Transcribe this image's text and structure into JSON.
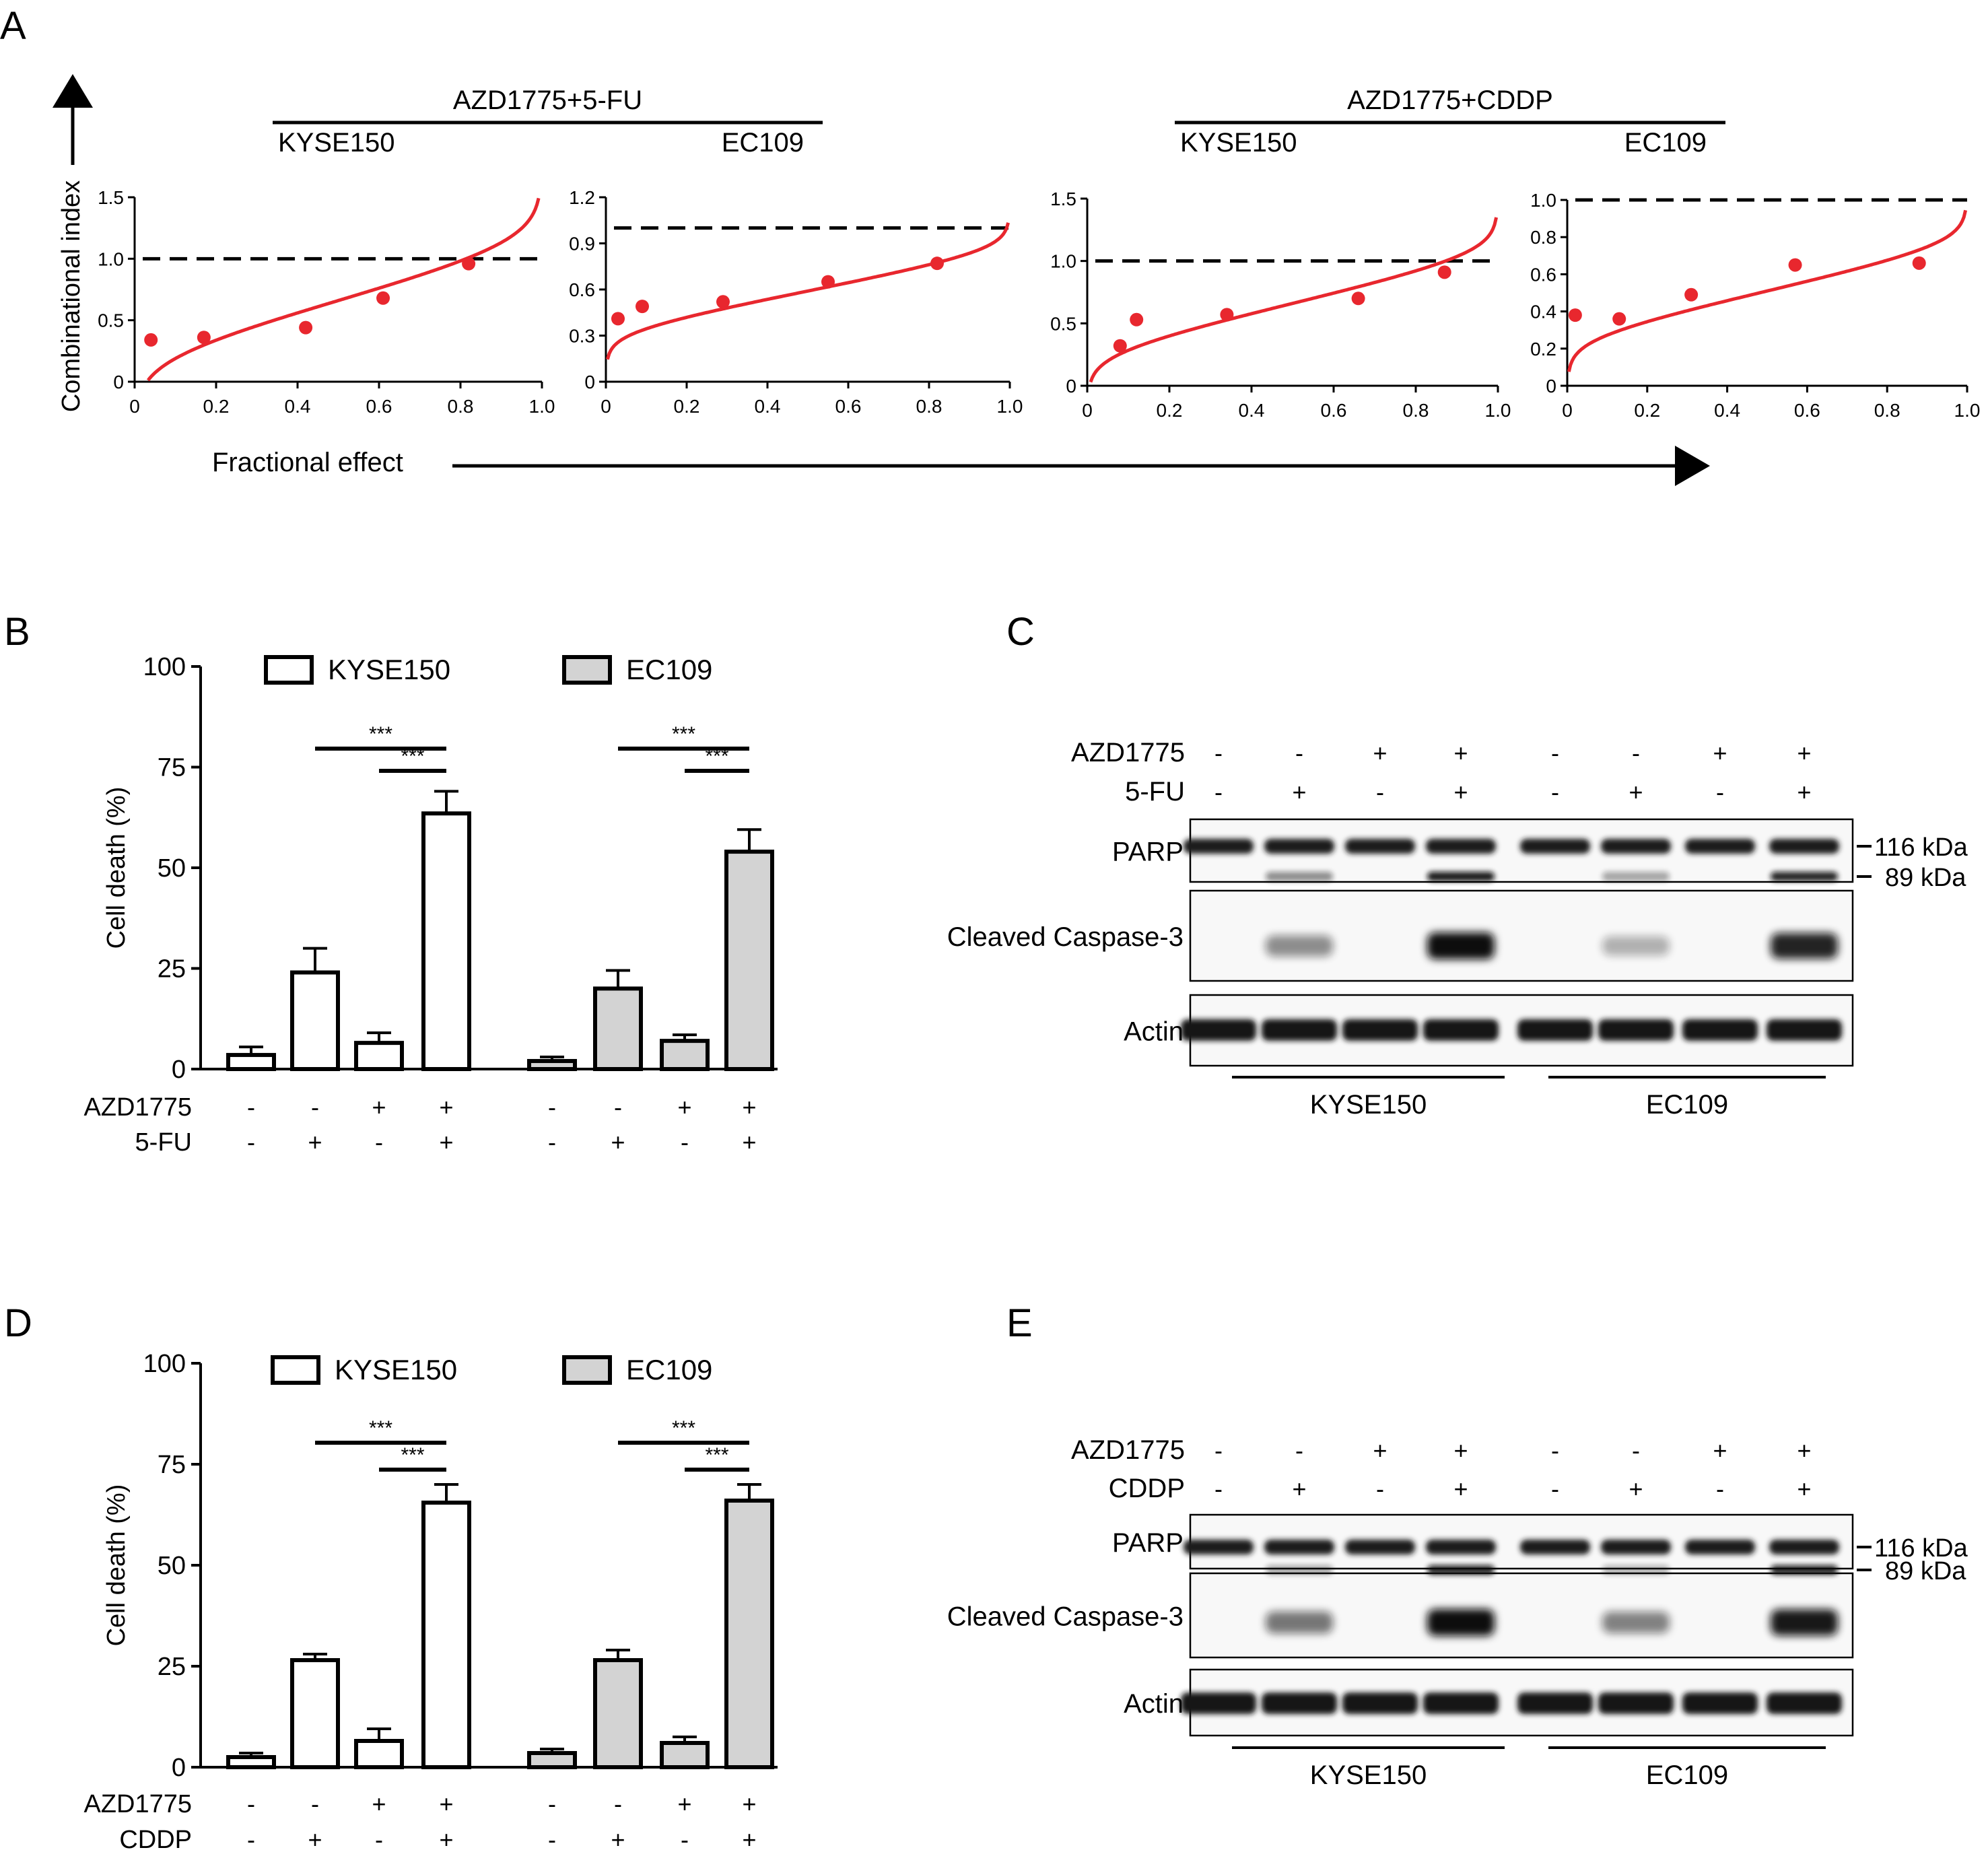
{
  "panel_a": {
    "letter": "A",
    "y_axis_label": "Combinational index",
    "x_axis_label": "Fractional effect",
    "groups": [
      {
        "title": "AZD1775+5-FU",
        "cells": [
          "KYSE150",
          "EC109"
        ]
      },
      {
        "title": "AZD1775+CDDP",
        "cells": [
          "KYSE150",
          "EC109"
        ]
      }
    ]
  },
  "panel_b": {
    "letter": "B"
  },
  "panel_c": {
    "letter": "C"
  },
  "panel_d": {
    "letter": "D"
  },
  "panel_e": {
    "letter": "E"
  },
  "blot_c": {
    "treat_rows": [
      {
        "label": "AZD1775",
        "signs": [
          "-",
          "-",
          "+",
          "+",
          "-",
          "-",
          "+",
          "+"
        ]
      },
      {
        "label": "5-FU",
        "signs": [
          "-",
          "+",
          "-",
          "+",
          "-",
          "+",
          "-",
          "+"
        ]
      }
    ],
    "bands": [
      "PARP",
      "Cleaved Caspase-3",
      "Actin"
    ],
    "markers": [
      "116 kDa",
      "89 kDa"
    ],
    "cells": [
      "KYSE150",
      "EC109"
    ],
    "parp_cleaved": [
      0.03,
      0.45,
      0.03,
      0.95,
      0.03,
      0.35,
      0.03,
      0.9
    ],
    "caspase": [
      0,
      0.45,
      0,
      1.0,
      0,
      0.3,
      0,
      0.9
    ]
  },
  "blot_e": {
    "treat_rows": [
      {
        "label": "AZD1775",
        "signs": [
          "-",
          "-",
          "+",
          "+",
          "-",
          "-",
          "+",
          "+"
        ]
      },
      {
        "label": "CDDP",
        "signs": [
          "-",
          "+",
          "-",
          "+",
          "-",
          "+",
          "-",
          "+"
        ]
      }
    ],
    "bands": [
      "PARP",
      "Cleaved Caspase-3",
      "Actin"
    ],
    "markers": [
      "116 kDa",
      "89 kDa"
    ],
    "cells": [
      "KYSE150",
      "EC109"
    ],
    "parp_cleaved": [
      0.03,
      0.35,
      0.03,
      0.9,
      0.03,
      0.3,
      0.03,
      0.9
    ],
    "caspase": [
      0,
      0.55,
      0,
      1.0,
      0,
      0.5,
      0,
      0.95
    ]
  },
  "chart_data": [
    {
      "type": "scatter",
      "title": "AZD1775+5-FU KYSE150",
      "xlabel": "Fractional effect",
      "ylabel": "Combinational index",
      "xlim": [
        0,
        1.0
      ],
      "ylim": [
        0,
        1.5
      ],
      "xticks": [
        "0",
        "0.2",
        "0.4",
        "0.6",
        "0.8",
        "1.0"
      ],
      "yticks": [
        "0",
        "0.5",
        "1.0",
        "1.5"
      ],
      "points": [
        [
          0.04,
          0.34
        ],
        [
          0.17,
          0.36
        ],
        [
          0.42,
          0.44
        ],
        [
          0.61,
          0.68
        ],
        [
          0.82,
          0.96
        ]
      ],
      "fit": {
        "a": 0.66,
        "b": 0.52,
        "c": 0.12
      },
      "reference_line": 1.0,
      "color": "#e8272e"
    },
    {
      "type": "scatter",
      "title": "AZD1775+5-FU EC109",
      "xlabel": "Fractional effect",
      "ylabel": "Combinational index",
      "xlim": [
        0,
        1.0
      ],
      "ylim": [
        0,
        1.2
      ],
      "xticks": [
        "0",
        "0.2",
        "0.4",
        "0.6",
        "0.8",
        "1.0"
      ],
      "yticks": [
        "0",
        "0.3",
        "0.6",
        "0.9",
        "1.2"
      ],
      "points": [
        [
          0.03,
          0.41
        ],
        [
          0.09,
          0.49
        ],
        [
          0.29,
          0.52
        ],
        [
          0.55,
          0.65
        ],
        [
          0.82,
          0.77
        ]
      ],
      "fit": {
        "a": 0.59,
        "b": 0.34,
        "c": 0.05
      },
      "reference_line": 1.0,
      "color": "#e8272e"
    },
    {
      "type": "scatter",
      "title": "AZD1775+CDDP KYSE150",
      "xlabel": "Fractional effect",
      "ylabel": "Combinational index",
      "xlim": [
        0,
        1.0
      ],
      "ylim": [
        0,
        1.5
      ],
      "xticks": [
        "0",
        "0.2",
        "0.4",
        "0.6",
        "0.8",
        "1.0"
      ],
      "yticks": [
        "0",
        "0.5",
        "1.0",
        "1.5"
      ],
      "points": [
        [
          0.08,
          0.32
        ],
        [
          0.12,
          0.53
        ],
        [
          0.34,
          0.57
        ],
        [
          0.66,
          0.7
        ],
        [
          0.87,
          0.91
        ]
      ],
      "fit": {
        "a": 0.66,
        "b": 0.5,
        "c": 0.08
      },
      "reference_line": 1.0,
      "color": "#e8272e"
    },
    {
      "type": "scatter",
      "title": "AZD1775+CDDP EC109",
      "xlabel": "Fractional effect",
      "ylabel": "Combinational index",
      "xlim": [
        0,
        1.0
      ],
      "ylim": [
        0,
        1.0
      ],
      "xticks": [
        "0",
        "0.2",
        "0.4",
        "0.6",
        "0.8",
        "1.0"
      ],
      "yticks": [
        "0",
        "0.2",
        "0.4",
        "0.6",
        "0.8",
        "1.0"
      ],
      "points": [
        [
          0.02,
          0.38
        ],
        [
          0.13,
          0.36
        ],
        [
          0.31,
          0.49
        ],
        [
          0.57,
          0.65
        ],
        [
          0.88,
          0.66
        ]
      ],
      "fit": {
        "a": 0.51,
        "b": 0.32,
        "c": 0.05
      },
      "reference_line": 1.0,
      "color": "#e8272e"
    },
    {
      "type": "bar",
      "title": "AZD1775 + 5-FU cell death",
      "ylabel": "Cell death (%)",
      "ylim": [
        0,
        100
      ],
      "yticks": [
        "0",
        "25",
        "50",
        "75",
        "100"
      ],
      "legend": [
        "KYSE150",
        "EC109"
      ],
      "treatments": [
        {
          "label": "AZD1775",
          "signs": [
            "-",
            "-",
            "+",
            "+"
          ]
        },
        {
          "label": "5-FU",
          "signs": [
            "-",
            "+",
            "-",
            "+"
          ]
        }
      ],
      "series": [
        {
          "name": "KYSE150",
          "values": [
            3.5,
            24,
            6.5,
            63.5
          ],
          "errors": [
            2,
            6,
            2.5,
            5.5
          ],
          "fill": "#ffffff"
        },
        {
          "name": "EC109",
          "values": [
            2,
            20,
            7,
            54
          ],
          "errors": [
            1,
            4.5,
            1.5,
            5.5
          ],
          "fill": "#d3d3d3"
        }
      ],
      "significance": [
        {
          "series": 0,
          "from": 1,
          "to": 3,
          "label": "***"
        },
        {
          "series": 0,
          "from": 2,
          "to": 3,
          "label": "***"
        },
        {
          "series": 1,
          "from": 1,
          "to": 3,
          "label": "***"
        },
        {
          "series": 1,
          "from": 2,
          "to": 3,
          "label": "***"
        }
      ]
    },
    {
      "type": "bar",
      "title": "AZD1775 + CDDP cell death",
      "ylabel": "Cell death (%)",
      "ylim": [
        0,
        100
      ],
      "yticks": [
        "0",
        "25",
        "50",
        "75",
        "100"
      ],
      "legend": [
        "KYSE150",
        "EC109"
      ],
      "treatments": [
        {
          "label": "AZD1775",
          "signs": [
            "-",
            "-",
            "+",
            "+"
          ]
        },
        {
          "label": "CDDP",
          "signs": [
            "-",
            "+",
            "-",
            "+"
          ]
        }
      ],
      "series": [
        {
          "name": "KYSE150",
          "values": [
            2.5,
            26.5,
            6.5,
            65.5
          ],
          "errors": [
            1,
            1.5,
            3,
            4.5
          ],
          "fill": "#ffffff"
        },
        {
          "name": "EC109",
          "values": [
            3.5,
            26.5,
            6,
            66
          ],
          "errors": [
            1,
            2.5,
            1.5,
            4
          ],
          "fill": "#d3d3d3"
        }
      ],
      "significance": [
        {
          "series": 0,
          "from": 1,
          "to": 3,
          "label": "***"
        },
        {
          "series": 0,
          "from": 2,
          "to": 3,
          "label": "***"
        },
        {
          "series": 1,
          "from": 1,
          "to": 3,
          "label": "***"
        },
        {
          "series": 1,
          "from": 2,
          "to": 3,
          "label": "***"
        }
      ]
    }
  ]
}
